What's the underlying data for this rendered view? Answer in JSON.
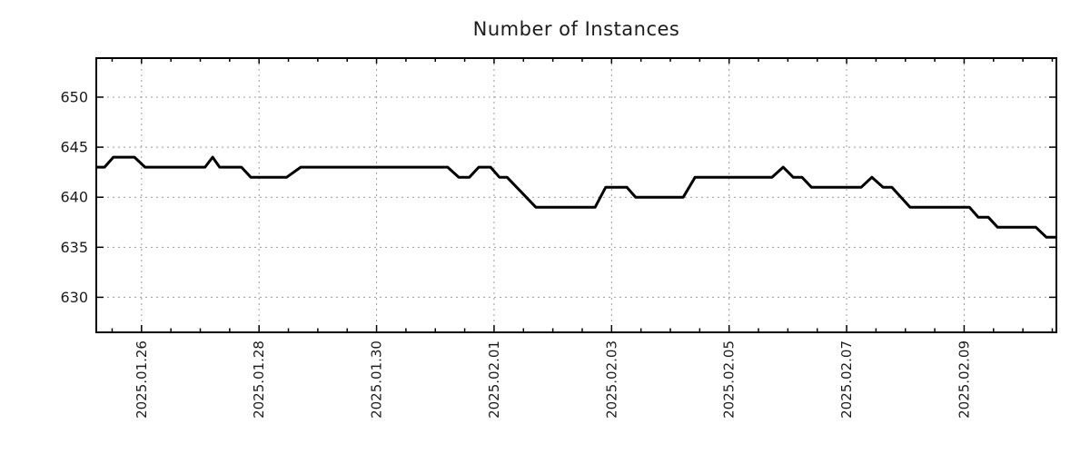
{
  "page": {
    "background": "#ffffff"
  },
  "chart_data": {
    "type": "line",
    "title": "Number of Instances",
    "x_axis": {
      "label": "",
      "unit": "days relative to 2025.01.26 00:00",
      "lim": [
        -0.77,
        15.57
      ],
      "major_ticks": [
        {
          "t": 0,
          "label": "2025.01.26"
        },
        {
          "t": 2,
          "label": "2025.01.28"
        },
        {
          "t": 4,
          "label": "2025.01.30"
        },
        {
          "t": 6,
          "label": "2025.02.01"
        },
        {
          "t": 8,
          "label": "2025.02.03"
        },
        {
          "t": 10,
          "label": "2025.02.05"
        },
        {
          "t": 12,
          "label": "2025.02.07"
        },
        {
          "t": 14,
          "label": "2025.02.09"
        }
      ],
      "minor_tick_step": 0.5
    },
    "y_axis": {
      "label": "",
      "lim": [
        626.5,
        653.9
      ],
      "ticks": [
        630,
        635,
        640,
        645,
        650
      ]
    },
    "grid": {
      "show": true,
      "line_style": "dashed",
      "color": "#9c9c9c"
    },
    "legend": {
      "show": false
    },
    "series": [
      {
        "name": "instances",
        "color": "#000000",
        "line_width": 3,
        "points": [
          [
            -0.77,
            643
          ],
          [
            -0.63,
            643
          ],
          [
            -0.48,
            644
          ],
          [
            -0.12,
            644
          ],
          [
            0.06,
            643
          ],
          [
            1.08,
            643
          ],
          [
            1.21,
            644
          ],
          [
            1.33,
            643
          ],
          [
            1.7,
            643
          ],
          [
            1.86,
            642
          ],
          [
            2.47,
            642
          ],
          [
            2.71,
            643
          ],
          [
            5.21,
            643
          ],
          [
            5.4,
            642
          ],
          [
            5.58,
            642
          ],
          [
            5.74,
            643
          ],
          [
            5.94,
            643
          ],
          [
            6.09,
            642
          ],
          [
            6.22,
            642
          ],
          [
            6.71,
            639
          ],
          [
            7.72,
            639
          ],
          [
            7.9,
            641
          ],
          [
            8.26,
            641
          ],
          [
            8.41,
            640
          ],
          [
            9.22,
            640
          ],
          [
            9.42,
            642
          ],
          [
            10.73,
            642
          ],
          [
            10.92,
            643
          ],
          [
            11.09,
            642
          ],
          [
            11.24,
            642
          ],
          [
            11.4,
            641
          ],
          [
            12.25,
            641
          ],
          [
            12.43,
            642
          ],
          [
            12.62,
            641
          ],
          [
            12.77,
            641
          ],
          [
            13.08,
            639
          ],
          [
            14.09,
            639
          ],
          [
            14.24,
            638
          ],
          [
            14.41,
            638
          ],
          [
            14.57,
            637
          ],
          [
            15.22,
            637
          ],
          [
            15.4,
            636
          ],
          [
            15.57,
            636
          ]
        ]
      }
    ],
    "colors": {
      "axis": "#000000",
      "text": "#1c1c1c"
    }
  }
}
